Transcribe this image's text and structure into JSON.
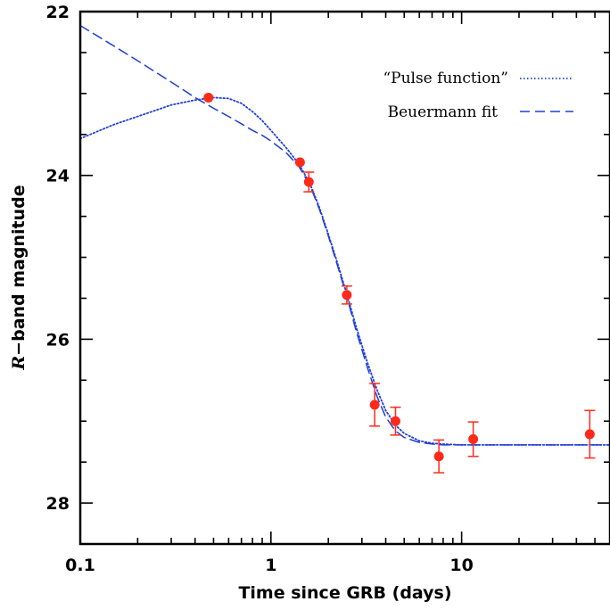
{
  "chart_data": {
    "type": "scatter",
    "xlabel": "Time since GRB (days)",
    "ylabel_italic": "R",
    "ylabel_rest": "−band magnitude",
    "xscale": "log",
    "xlim": [
      0.1,
      60
    ],
    "ylim": [
      28.5,
      22
    ],
    "y_inverted": true,
    "xticks": [
      0.1,
      1,
      10
    ],
    "xtick_labels": [
      "0.1",
      "1",
      "10"
    ],
    "yticks": [
      22,
      24,
      26,
      28
    ],
    "ytick_labels": [
      "22",
      "24",
      "26",
      "28"
    ],
    "legend_position": "top-right",
    "grid": false,
    "series": [
      {
        "name": "“Pulse function”",
        "kind": "line",
        "style": "dotted",
        "color": "#1f3fd8",
        "points": [
          [
            0.1,
            23.55
          ],
          [
            0.15,
            23.38
          ],
          [
            0.2,
            23.28
          ],
          [
            0.3,
            23.14
          ],
          [
            0.4,
            23.08
          ],
          [
            0.5,
            23.05
          ],
          [
            0.6,
            23.06
          ],
          [
            0.7,
            23.12
          ],
          [
            0.8,
            23.22
          ],
          [
            0.9,
            23.33
          ],
          [
            1.0,
            23.45
          ],
          [
            1.2,
            23.66
          ],
          [
            1.4,
            23.86
          ],
          [
            1.6,
            24.1
          ],
          [
            1.8,
            24.4
          ],
          [
            2.0,
            24.72
          ],
          [
            2.2,
            25.02
          ],
          [
            2.5,
            25.45
          ],
          [
            2.8,
            25.85
          ],
          [
            3.2,
            26.28
          ],
          [
            3.6,
            26.62
          ],
          [
            4.0,
            26.87
          ],
          [
            4.5,
            27.05
          ],
          [
            5.0,
            27.15
          ],
          [
            6.0,
            27.24
          ],
          [
            7.0,
            27.27
          ],
          [
            8.0,
            27.28
          ],
          [
            10.0,
            27.29
          ],
          [
            20.0,
            27.29
          ],
          [
            60.0,
            27.29
          ]
        ]
      },
      {
        "name": "Beuermann fit",
        "kind": "line",
        "style": "dashed",
        "color": "#1f3fd8",
        "points": [
          [
            0.1,
            22.17
          ],
          [
            0.15,
            22.42
          ],
          [
            0.2,
            22.6
          ],
          [
            0.3,
            22.86
          ],
          [
            0.4,
            23.05
          ],
          [
            0.5,
            23.18
          ],
          [
            0.6,
            23.28
          ],
          [
            0.7,
            23.37
          ],
          [
            0.8,
            23.45
          ],
          [
            0.9,
            23.51
          ],
          [
            1.0,
            23.58
          ],
          [
            1.2,
            23.72
          ],
          [
            1.4,
            23.89
          ],
          [
            1.6,
            24.12
          ],
          [
            1.8,
            24.42
          ],
          [
            2.0,
            24.74
          ],
          [
            2.2,
            25.05
          ],
          [
            2.5,
            25.48
          ],
          [
            2.8,
            25.9
          ],
          [
            3.2,
            26.34
          ],
          [
            3.6,
            26.7
          ],
          [
            4.0,
            26.95
          ],
          [
            4.5,
            27.12
          ],
          [
            5.0,
            27.2
          ],
          [
            6.0,
            27.26
          ],
          [
            7.0,
            27.28
          ],
          [
            8.0,
            27.29
          ],
          [
            10.0,
            27.29
          ],
          [
            20.0,
            27.29
          ],
          [
            60.0,
            27.29
          ]
        ]
      },
      {
        "name": "",
        "kind": "points",
        "color": "#ff2a1a",
        "points": [
          {
            "x": 0.47,
            "y": 23.05,
            "err": 0
          },
          {
            "x": 1.42,
            "y": 23.84,
            "err": 0
          },
          {
            "x": 1.58,
            "y": 24.08,
            "err": 0.12
          },
          {
            "x": 2.5,
            "y": 25.46,
            "err": 0.11
          },
          {
            "x": 3.5,
            "y": 26.8,
            "err": 0.26
          },
          {
            "x": 4.5,
            "y": 27.0,
            "err": 0.17
          },
          {
            "x": 7.6,
            "y": 27.43,
            "err": 0.2
          },
          {
            "x": 11.5,
            "y": 27.22,
            "err": 0.21
          },
          {
            "x": 47.0,
            "y": 27.16,
            "err": 0.29
          }
        ]
      }
    ]
  }
}
